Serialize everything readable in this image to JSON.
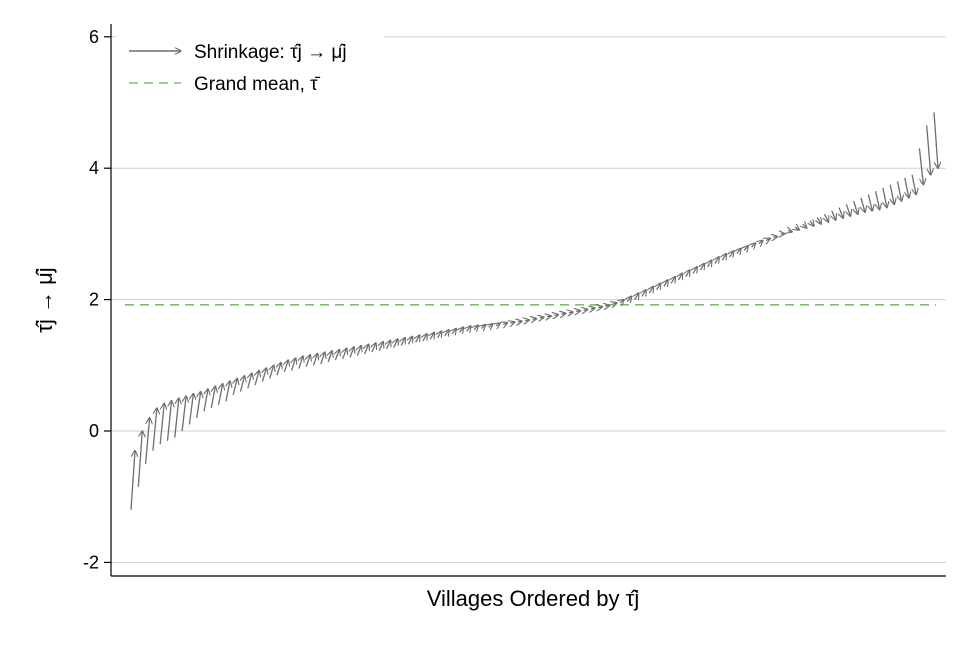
{
  "chart_data": {
    "type": "line",
    "title": "",
    "xlabel": "Villages Ordered by τ̂j",
    "ylabel": "τ̂j → μ̂j",
    "ylim": [
      -2.2,
      6.2
    ],
    "yticks": [
      -2,
      0,
      2,
      4,
      6
    ],
    "ytick_labels": [
      "-2",
      "0",
      "2",
      "4",
      "6"
    ],
    "grid": "horizontal",
    "legend_position": "top-left",
    "legend": [
      {
        "label": "Shrinkage: τ̂j → μ̂j",
        "style": "arrow",
        "color": "#707070"
      },
      {
        "label": "Grand mean, τ̄",
        "style": "dashed",
        "color": "#7dbd6e"
      }
    ],
    "grand_mean": 1.92,
    "series": [
      {
        "name": "τ̂j",
        "values": [
          -1.2,
          -0.85,
          -0.5,
          -0.3,
          -0.2,
          -0.15,
          -0.1,
          0.0,
          0.1,
          0.2,
          0.3,
          0.35,
          0.4,
          0.45,
          0.55,
          0.6,
          0.65,
          0.7,
          0.75,
          0.8,
          0.85,
          0.9,
          0.92,
          0.95,
          0.98,
          1.0,
          1.02,
          1.05,
          1.08,
          1.1,
          1.12,
          1.15,
          1.17,
          1.2,
          1.22,
          1.25,
          1.27,
          1.3,
          1.32,
          1.35,
          1.37,
          1.4,
          1.42,
          1.45,
          1.48,
          1.5,
          1.52,
          1.54,
          1.56,
          1.58,
          1.6,
          1.62,
          1.64,
          1.66,
          1.68,
          1.7,
          1.72,
          1.74,
          1.76,
          1.78,
          1.8,
          1.82,
          1.84,
          1.86,
          1.88,
          1.9,
          1.93,
          1.95,
          1.97,
          2.0,
          2.05,
          2.1,
          2.15,
          2.2,
          2.25,
          2.3,
          2.35,
          2.4,
          2.45,
          2.5,
          2.55,
          2.6,
          2.65,
          2.7,
          2.75,
          2.8,
          2.85,
          2.9,
          2.95,
          3.0,
          3.05,
          3.1,
          3.15,
          3.2,
          3.25,
          3.3,
          3.35,
          3.4,
          3.45,
          3.5,
          3.55,
          3.6,
          3.65,
          3.7,
          3.75,
          3.8,
          3.85,
          3.9,
          4.3,
          4.65,
          4.85
        ]
      },
      {
        "name": "μ̂j",
        "values": [
          -0.3,
          0.0,
          0.2,
          0.35,
          0.42,
          0.46,
          0.5,
          0.53,
          0.57,
          0.6,
          0.64,
          0.68,
          0.72,
          0.76,
          0.8,
          0.84,
          0.88,
          0.92,
          0.96,
          1.0,
          1.04,
          1.08,
          1.11,
          1.14,
          1.16,
          1.18,
          1.2,
          1.22,
          1.24,
          1.26,
          1.28,
          1.3,
          1.32,
          1.34,
          1.36,
          1.38,
          1.4,
          1.42,
          1.44,
          1.46,
          1.48,
          1.5,
          1.52,
          1.54,
          1.56,
          1.58,
          1.6,
          1.61,
          1.62,
          1.63,
          1.64,
          1.65,
          1.66,
          1.67,
          1.69,
          1.71,
          1.73,
          1.75,
          1.77,
          1.79,
          1.81,
          1.83,
          1.85,
          1.87,
          1.89,
          1.91,
          1.95,
          2.0,
          2.05,
          2.1,
          2.15,
          2.2,
          2.25,
          2.3,
          2.35,
          2.4,
          2.45,
          2.5,
          2.55,
          2.6,
          2.65,
          2.7,
          2.74,
          2.78,
          2.82,
          2.86,
          2.9,
          2.93,
          2.96,
          3.0,
          3.03,
          3.06,
          3.09,
          3.12,
          3.15,
          3.18,
          3.21,
          3.24,
          3.27,
          3.3,
          3.33,
          3.35,
          3.37,
          3.4,
          3.45,
          3.5,
          3.55,
          3.6,
          3.75,
          3.9,
          4.0
        ]
      }
    ]
  }
}
